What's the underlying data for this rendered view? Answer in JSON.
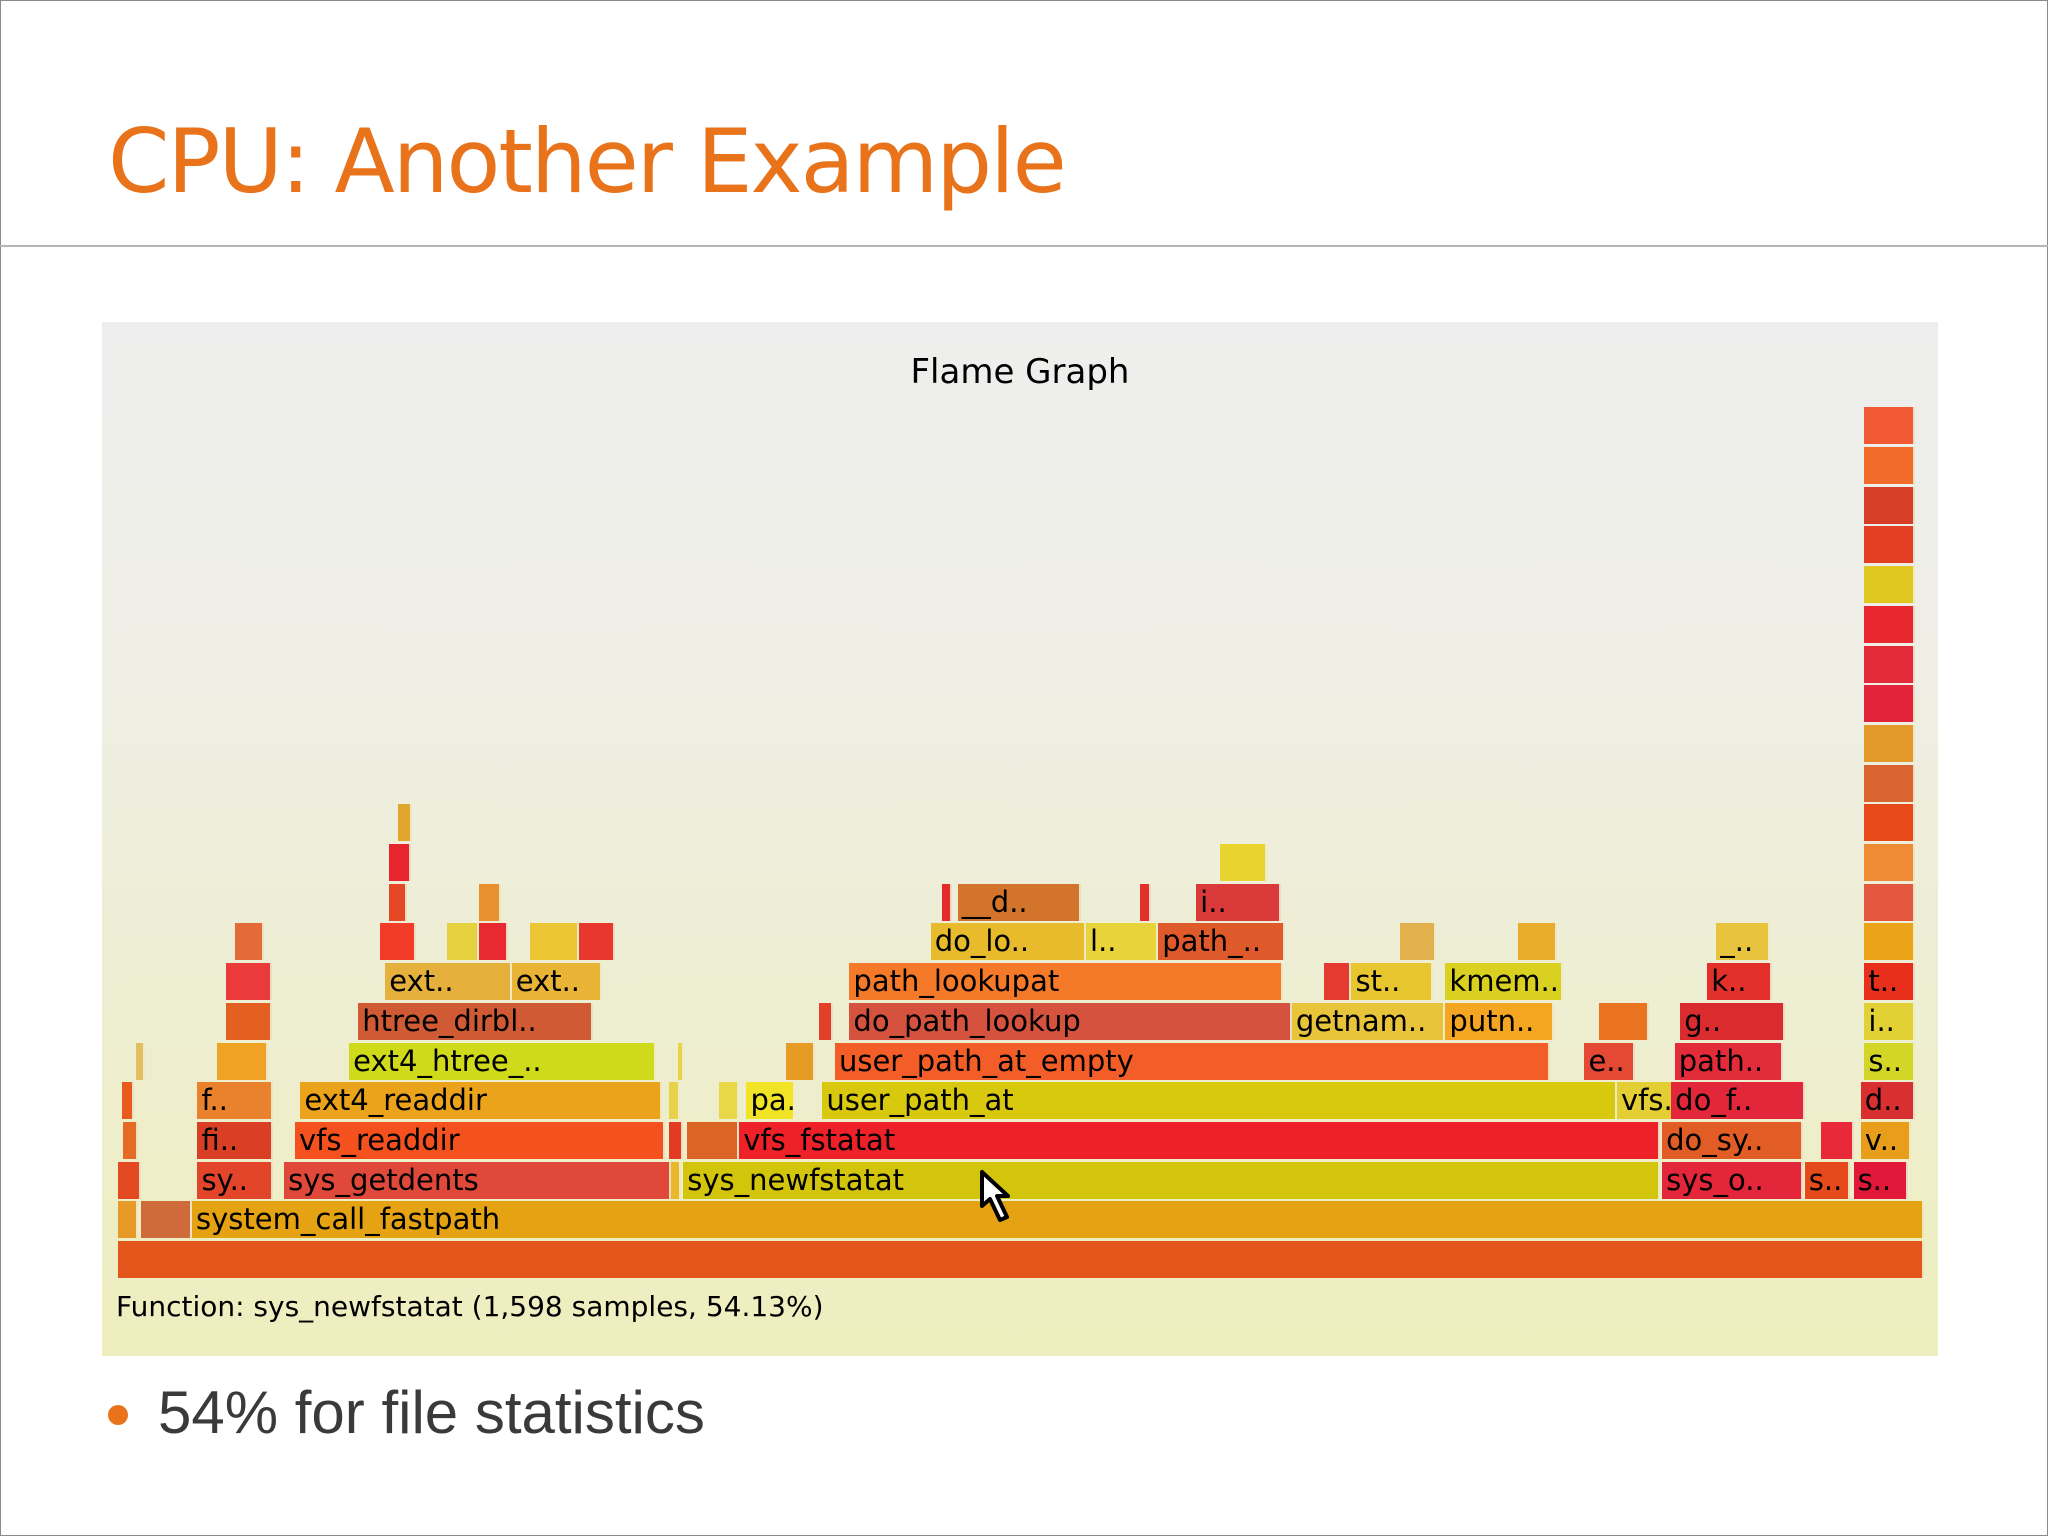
{
  "slide": {
    "title": "CPU: Another Example",
    "title_color": "#e8731a",
    "bullets": [
      {
        "text": "54% for file statistics"
      }
    ],
    "bullet_color": "#e8731a",
    "bullet_text_color": "#3a3a3a"
  },
  "flamegraph": {
    "title": "Flame Graph",
    "status": "Function: sys_newfstatat (1,598 samples, 54.13%)",
    "frames": [
      {
        "label": "",
        "depth": 0,
        "start": 0.0,
        "width": 1.0,
        "color": "#e4561b"
      },
      {
        "label": "",
        "depth": 1,
        "start": 0.0,
        "width": 0.011,
        "color": "#e89a28"
      },
      {
        "label": "",
        "depth": 1,
        "start": 0.013,
        "width": 0.028,
        "color": "#cf6a3a"
      },
      {
        "label": "system_call_fastpath",
        "depth": 1,
        "start": 0.041,
        "width": 0.959,
        "color": "#e5a313"
      },
      {
        "label": "",
        "depth": 2,
        "start": 0.0,
        "width": 0.013,
        "color": "#e34a22"
      },
      {
        "label": "sy..",
        "depth": 2,
        "start": 0.044,
        "width": 0.042,
        "color": "#e3452a"
      },
      {
        "label": "sys_getdents",
        "depth": 2,
        "start": 0.092,
        "width": 0.214,
        "color": "#e0483a"
      },
      {
        "label": "",
        "depth": 2,
        "start": 0.306,
        "width": 0.006,
        "color": "#e8b72c"
      },
      {
        "label": "sys_newfstatat",
        "depth": 2,
        "start": 0.313,
        "width": 0.541,
        "color": "#d2c50c"
      },
      {
        "label": "sys_o..",
        "depth": 2,
        "start": 0.855,
        "width": 0.078,
        "color": "#e3263a"
      },
      {
        "label": "s..",
        "depth": 2,
        "start": 0.934,
        "width": 0.025,
        "color": "#e44a1c"
      },
      {
        "label": "s..",
        "depth": 2,
        "start": 0.961,
        "width": 0.03,
        "color": "#e2183a"
      },
      {
        "label": "",
        "depth": 3,
        "start": 0.003,
        "width": 0.008,
        "color": "#e46a26"
      },
      {
        "label": "fi..",
        "depth": 3,
        "start": 0.044,
        "width": 0.042,
        "color": "#da3f26"
      },
      {
        "label": "vfs_readdir",
        "depth": 3,
        "start": 0.098,
        "width": 0.205,
        "color": "#f4511f"
      },
      {
        "label": "",
        "depth": 3,
        "start": 0.305,
        "width": 0.008,
        "color": "#e23b21"
      },
      {
        "label": "",
        "depth": 3,
        "start": 0.315,
        "width": 0.029,
        "color": "#dc6525"
      },
      {
        "label": "vfs_fstatat",
        "depth": 3,
        "start": 0.344,
        "width": 0.51,
        "color": "#ed2127"
      },
      {
        "label": "do_sy..",
        "depth": 3,
        "start": 0.855,
        "width": 0.078,
        "color": "#e25d25"
      },
      {
        "label": "",
        "depth": 3,
        "start": 0.943,
        "width": 0.018,
        "color": "#e82937"
      },
      {
        "label": "v..",
        "depth": 3,
        "start": 0.965,
        "width": 0.028,
        "color": "#e89e1b"
      },
      {
        "label": "",
        "depth": 4,
        "start": 0.002,
        "width": 0.007,
        "color": "#e85a1e"
      },
      {
        "label": "f..",
        "depth": 4,
        "start": 0.044,
        "width": 0.042,
        "color": "#e9812d"
      },
      {
        "label": "ext4_readdir",
        "depth": 4,
        "start": 0.101,
        "width": 0.2,
        "color": "#eba31b"
      },
      {
        "label": "",
        "depth": 4,
        "start": 0.305,
        "width": 0.006,
        "color": "#e8d24c"
      },
      {
        "label": "",
        "depth": 4,
        "start": 0.333,
        "width": 0.011,
        "color": "#e9d74a"
      },
      {
        "label": "pa..",
        "depth": 4,
        "start": 0.348,
        "width": 0.027,
        "color": "#f1e426"
      },
      {
        "label": "user_path_at",
        "depth": 4,
        "start": 0.39,
        "width": 0.44,
        "color": "#d8c80e"
      },
      {
        "label": "vfs..",
        "depth": 4,
        "start": 0.83,
        "width": 0.06,
        "color": "#e3cf34"
      },
      {
        "label": "do_f..",
        "depth": 4,
        "start": 0.86,
        "width": 0.074,
        "color": "#e2273a"
      },
      {
        "label": "d..",
        "depth": 4,
        "start": 0.965,
        "width": 0.03,
        "color": "#d82f30"
      },
      {
        "label": "",
        "depth": 5,
        "start": 0.01,
        "width": 0.005,
        "color": "#e3c05f"
      },
      {
        "label": "",
        "depth": 5,
        "start": 0.055,
        "width": 0.028,
        "color": "#f0a224"
      },
      {
        "label": "ext4_htree_..",
        "depth": 5,
        "start": 0.128,
        "width": 0.17,
        "color": "#cfda1a"
      },
      {
        "label": "",
        "depth": 5,
        "start": 0.31,
        "width": 0.003,
        "color": "#e8d24c"
      },
      {
        "label": "",
        "depth": 5,
        "start": 0.37,
        "width": 0.016,
        "color": "#e69c24"
      },
      {
        "label": "user_path_at_empty",
        "depth": 5,
        "start": 0.397,
        "width": 0.396,
        "color": "#f35d28"
      },
      {
        "label": "e..",
        "depth": 5,
        "start": 0.812,
        "width": 0.028,
        "color": "#e44a33"
      },
      {
        "label": "path..",
        "depth": 5,
        "start": 0.862,
        "width": 0.06,
        "color": "#e32c3a"
      },
      {
        "label": "s..",
        "depth": 5,
        "start": 0.967,
        "width": 0.028,
        "color": "#d3d527"
      },
      {
        "label": "",
        "depth": 6,
        "start": 0.06,
        "width": 0.025,
        "color": "#e46020"
      },
      {
        "label": "htree_dirbl..",
        "depth": 6,
        "start": 0.133,
        "width": 0.13,
        "color": "#cf5a33"
      },
      {
        "label": "",
        "depth": 6,
        "start": 0.388,
        "width": 0.008,
        "color": "#e3402a"
      },
      {
        "label": "do_path_lookup",
        "depth": 6,
        "start": 0.405,
        "width": 0.245,
        "color": "#d4523e"
      },
      {
        "label": "getnam..",
        "depth": 6,
        "start": 0.65,
        "width": 0.085,
        "color": "#e7c43a"
      },
      {
        "label": "putn..",
        "depth": 6,
        "start": 0.735,
        "width": 0.06,
        "color": "#f4a521"
      },
      {
        "label": "",
        "depth": 6,
        "start": 0.82,
        "width": 0.028,
        "color": "#e9731f"
      },
      {
        "label": "g..",
        "depth": 6,
        "start": 0.865,
        "width": 0.058,
        "color": "#da2b2f"
      },
      {
        "label": "i..",
        "depth": 6,
        "start": 0.967,
        "width": 0.028,
        "color": "#e1d134"
      },
      {
        "label": "",
        "depth": 7,
        "start": 0.06,
        "width": 0.025,
        "color": "#ea3a3a"
      },
      {
        "label": "ext..",
        "depth": 7,
        "start": 0.148,
        "width": 0.07,
        "color": "#e6b03d"
      },
      {
        "label": "ext..",
        "depth": 7,
        "start": 0.218,
        "width": 0.05,
        "color": "#e9b336"
      },
      {
        "label": "path_lookupat",
        "depth": 7,
        "start": 0.405,
        "width": 0.24,
        "color": "#f47a2a"
      },
      {
        "label": "",
        "depth": 7,
        "start": 0.668,
        "width": 0.015,
        "color": "#e53a2f"
      },
      {
        "label": "st..",
        "depth": 7,
        "start": 0.683,
        "width": 0.045,
        "color": "#e8c62f"
      },
      {
        "label": "kmem..",
        "depth": 7,
        "start": 0.735,
        "width": 0.065,
        "color": "#d9d020"
      },
      {
        "label": "k..",
        "depth": 7,
        "start": 0.88,
        "width": 0.036,
        "color": "#e3302a"
      },
      {
        "label": "t..",
        "depth": 7,
        "start": 0.967,
        "width": 0.028,
        "color": "#e82f1c"
      },
      {
        "label": "",
        "depth": 8,
        "start": 0.065,
        "width": 0.016,
        "color": "#e46a37"
      },
      {
        "label": "",
        "depth": 8,
        "start": 0.145,
        "width": 0.02,
        "color": "#f23c27"
      },
      {
        "label": "",
        "depth": 8,
        "start": 0.182,
        "width": 0.018,
        "color": "#e6d13e"
      },
      {
        "label": "",
        "depth": 8,
        "start": 0.2,
        "width": 0.016,
        "color": "#e82931"
      },
      {
        "label": "",
        "depth": 8,
        "start": 0.228,
        "width": 0.027,
        "color": "#ecc634"
      },
      {
        "label": "",
        "depth": 8,
        "start": 0.255,
        "width": 0.02,
        "color": "#e8372f"
      },
      {
        "label": "do_lo..",
        "depth": 8,
        "start": 0.45,
        "width": 0.086,
        "color": "#e7bb2b"
      },
      {
        "label": "l..",
        "depth": 8,
        "start": 0.536,
        "width": 0.04,
        "color": "#e8d33a"
      },
      {
        "label": "path_..",
        "depth": 8,
        "start": 0.576,
        "width": 0.07,
        "color": "#df5a2a"
      },
      {
        "label": "",
        "depth": 8,
        "start": 0.71,
        "width": 0.02,
        "color": "#e3b04e"
      },
      {
        "label": "",
        "depth": 8,
        "start": 0.775,
        "width": 0.022,
        "color": "#e9ac2c"
      },
      {
        "label": "_..",
        "depth": 8,
        "start": 0.885,
        "width": 0.03,
        "color": "#e8c43e"
      },
      {
        "label": "",
        "depth": 8,
        "start": 0.967,
        "width": 0.028,
        "color": "#eba418"
      },
      {
        "label": "__d..",
        "depth": 9,
        "start": 0.465,
        "width": 0.068,
        "color": "#d3742d"
      },
      {
        "label": "",
        "depth": 9,
        "start": 0.456,
        "width": 0.006,
        "color": "#e32b2a"
      },
      {
        "label": "",
        "depth": 9,
        "start": 0.566,
        "width": 0.006,
        "color": "#e3302a"
      },
      {
        "label": "i..",
        "depth": 9,
        "start": 0.597,
        "width": 0.047,
        "color": "#da3a3a"
      },
      {
        "label": "",
        "depth": 9,
        "start": 0.15,
        "width": 0.01,
        "color": "#e44827"
      },
      {
        "label": "",
        "depth": 9,
        "start": 0.2,
        "width": 0.012,
        "color": "#e7902d"
      },
      {
        "label": "",
        "depth": 9,
        "start": 0.967,
        "width": 0.028,
        "color": "#e4563d"
      },
      {
        "label": "",
        "depth": 10,
        "start": 0.61,
        "width": 0.026,
        "color": "#e9d32e"
      },
      {
        "label": "",
        "depth": 10,
        "start": 0.15,
        "width": 0.012,
        "color": "#e6252f"
      },
      {
        "label": "",
        "depth": 10,
        "start": 0.967,
        "width": 0.028,
        "color": "#ef8b34"
      },
      {
        "label": "",
        "depth": 11,
        "start": 0.155,
        "width": 0.008,
        "color": "#e1a62e"
      },
      {
        "label": "",
        "depth": 11,
        "start": 0.967,
        "width": 0.028,
        "color": "#e84a1a"
      },
      {
        "label": "",
        "depth": 12,
        "start": 0.967,
        "width": 0.028,
        "color": "#d9642f"
      },
      {
        "label": "",
        "depth": 13,
        "start": 0.967,
        "width": 0.028,
        "color": "#e49a2a"
      },
      {
        "label": "",
        "depth": 14,
        "start": 0.967,
        "width": 0.028,
        "color": "#e3233a"
      },
      {
        "label": "",
        "depth": 15,
        "start": 0.967,
        "width": 0.028,
        "color": "#e32a38"
      },
      {
        "label": "",
        "depth": 16,
        "start": 0.967,
        "width": 0.028,
        "color": "#e8272f"
      },
      {
        "label": "",
        "depth": 17,
        "start": 0.967,
        "width": 0.028,
        "color": "#e1c821"
      },
      {
        "label": "",
        "depth": 18,
        "start": 0.967,
        "width": 0.028,
        "color": "#e33f23"
      },
      {
        "label": "",
        "depth": 19,
        "start": 0.967,
        "width": 0.028,
        "color": "#d73e27"
      },
      {
        "label": "",
        "depth": 20,
        "start": 0.967,
        "width": 0.028,
        "color": "#f26b2a"
      },
      {
        "label": "",
        "depth": 21,
        "start": 0.967,
        "width": 0.028,
        "color": "#f25a36"
      }
    ]
  }
}
